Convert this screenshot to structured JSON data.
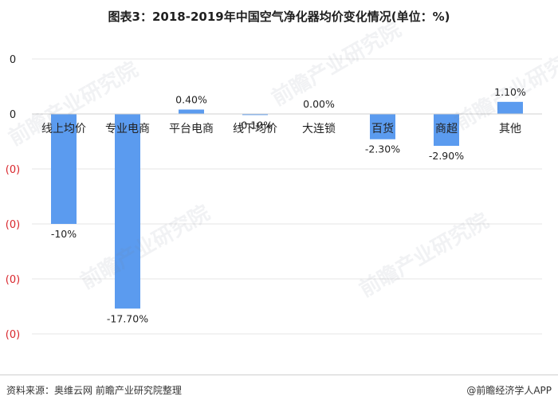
{
  "title": "图表3：2018-2019年中国空气净化器均价变化情况(单位：%)",
  "chart_data": {
    "type": "bar",
    "categories": [
      "线上均价",
      "专业电商",
      "平台电商",
      "线下均价",
      "大连锁",
      "百货",
      "商超",
      "其他"
    ],
    "values": [
      -10,
      -17.7,
      0.4,
      -0.1,
      0.0,
      -2.3,
      -2.9,
      1.1
    ],
    "data_labels": [
      "-10%",
      "-17.70%",
      "0.40%",
      "-0.10%",
      "0.00%",
      "-2.30%",
      "-2.90%",
      "1.10%"
    ],
    "y_tick_labels": [
      "0",
      "0",
      "(0)",
      "(0)",
      "(0)",
      "(0)"
    ],
    "y_tick_values": [
      5,
      0,
      -5,
      -10,
      -15,
      -20
    ],
    "ylim": [
      -20,
      5
    ],
    "bar_color": "#5b9bef",
    "negative_tick_color": "#d9262c",
    "grid": true
  },
  "watermark": "前瞻产业研究院",
  "footer": {
    "source": "资料来源：奥维云网 前瞻产业研究院整理",
    "credit": "@前瞻经济学人APP"
  }
}
